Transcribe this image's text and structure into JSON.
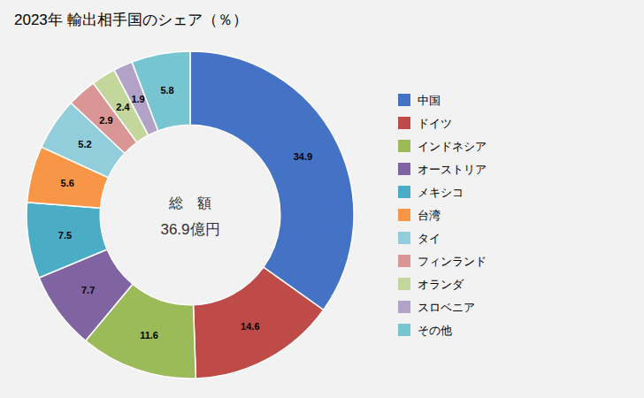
{
  "chart_data": {
    "type": "donut",
    "title": "2023年 輸出相手国のシェア（％）",
    "annotations": [
      "総　額",
      "36.9億円"
    ],
    "categories": [
      "中国",
      "ドイツ",
      "インドネシア",
      "オーストリア",
      "メキシコ",
      "台湾",
      "タイ",
      "フィンランド",
      "オランダ",
      "スロベニア",
      "その他"
    ],
    "values": [
      34.9,
      14.6,
      11.6,
      7.7,
      7.5,
      5.6,
      5.2,
      2.9,
      2.4,
      1.9,
      5.8
    ],
    "colors": [
      "#4472C4",
      "#BE4B48",
      "#9BBB59",
      "#8064A2",
      "#4BACC6",
      "#F79646",
      "#92CDDC",
      "#D99694",
      "#C3D69B",
      "#B2A2C7",
      "#76C5D0"
    ],
    "data_labels": true,
    "legend": "right"
  }
}
